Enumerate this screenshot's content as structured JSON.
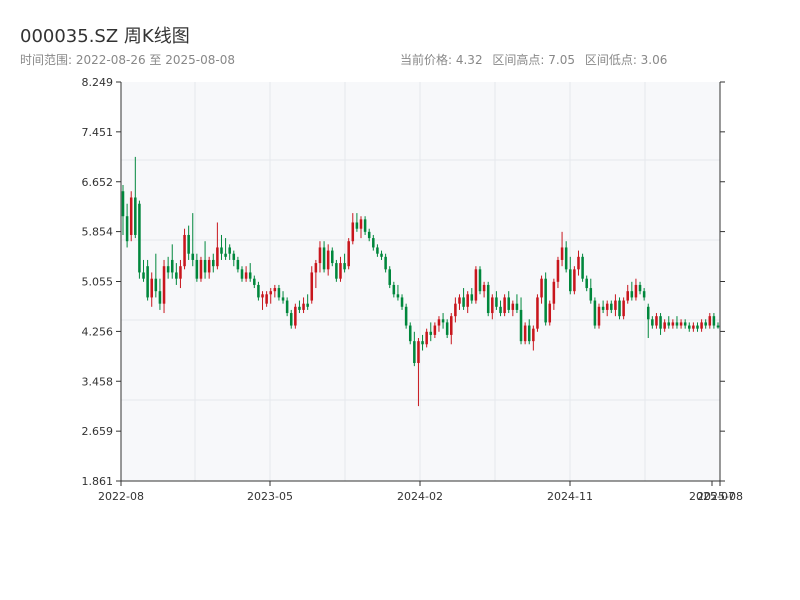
{
  "header": {
    "title": "000035.SZ 周K线图",
    "range_label": "时间范围: 2022-08-26 至 2025-08-08",
    "current_price": "当前价格: 4.32",
    "range_high": "区间高点: 7.05",
    "range_low": "区间低点: 3.06"
  },
  "colors": {
    "up": "#c8161d",
    "down": "#00873c",
    "plot_bg": "#f7f8fa",
    "grid": "#e6e8ec",
    "axis": "#333333"
  },
  "chart_data": {
    "type": "candlestick",
    "title": "000035.SZ 周K线图",
    "ylim": [
      1.861,
      8.249
    ],
    "y_ticks": [
      "1.861",
      "2.659",
      "3.458",
      "4.256",
      "5.055",
      "5.854",
      "6.652",
      "7.451",
      "8.249"
    ],
    "x_ticks": [
      "2022-08",
      "2023-05",
      "2024-02",
      "2024-11",
      "2025-07",
      "2025-08"
    ],
    "grid": true,
    "candles": [
      {
        "o": 6.5,
        "h": 6.6,
        "l": 5.8,
        "c": 6.1
      },
      {
        "o": 6.1,
        "h": 6.3,
        "l": 5.6,
        "c": 5.7
      },
      {
        "o": 5.8,
        "h": 6.5,
        "l": 5.7,
        "c": 6.4
      },
      {
        "o": 6.4,
        "h": 7.05,
        "l": 5.75,
        "c": 5.8
      },
      {
        "o": 6.3,
        "h": 6.35,
        "l": 5.1,
        "c": 5.2
      },
      {
        "o": 5.2,
        "h": 5.4,
        "l": 5.05,
        "c": 5.1
      },
      {
        "o": 5.3,
        "h": 5.4,
        "l": 4.75,
        "c": 4.8
      },
      {
        "o": 4.8,
        "h": 5.2,
        "l": 4.65,
        "c": 5.1
      },
      {
        "o": 5.1,
        "h": 5.5,
        "l": 4.8,
        "c": 4.9
      },
      {
        "o": 4.9,
        "h": 5.1,
        "l": 4.6,
        "c": 4.7
      },
      {
        "o": 4.7,
        "h": 5.4,
        "l": 4.55,
        "c": 5.3
      },
      {
        "o": 5.3,
        "h": 5.45,
        "l": 5.1,
        "c": 5.2
      },
      {
        "o": 5.4,
        "h": 5.65,
        "l": 5.1,
        "c": 5.2
      },
      {
        "o": 5.2,
        "h": 5.35,
        "l": 5.0,
        "c": 5.1
      },
      {
        "o": 5.1,
        "h": 5.4,
        "l": 4.95,
        "c": 5.3
      },
      {
        "o": 5.3,
        "h": 5.9,
        "l": 5.25,
        "c": 5.8
      },
      {
        "o": 5.8,
        "h": 5.95,
        "l": 5.4,
        "c": 5.5
      },
      {
        "o": 5.5,
        "h": 6.15,
        "l": 5.3,
        "c": 5.4
      },
      {
        "o": 5.4,
        "h": 5.5,
        "l": 5.05,
        "c": 5.1
      },
      {
        "o": 5.1,
        "h": 5.45,
        "l": 5.05,
        "c": 5.4
      },
      {
        "o": 5.4,
        "h": 5.7,
        "l": 5.1,
        "c": 5.2
      },
      {
        "o": 5.2,
        "h": 5.45,
        "l": 5.1,
        "c": 5.4
      },
      {
        "o": 5.4,
        "h": 5.5,
        "l": 5.2,
        "c": 5.3
      },
      {
        "o": 5.3,
        "h": 6.0,
        "l": 5.25,
        "c": 5.6
      },
      {
        "o": 5.6,
        "h": 5.8,
        "l": 5.4,
        "c": 5.5
      },
      {
        "o": 5.5,
        "h": 5.75,
        "l": 5.4,
        "c": 5.45
      },
      {
        "o": 5.6,
        "h": 5.65,
        "l": 5.4,
        "c": 5.5
      },
      {
        "o": 5.5,
        "h": 5.55,
        "l": 5.3,
        "c": 5.4
      },
      {
        "o": 5.4,
        "h": 5.45,
        "l": 5.2,
        "c": 5.25
      },
      {
        "o": 5.25,
        "h": 5.3,
        "l": 5.05,
        "c": 5.1
      },
      {
        "o": 5.1,
        "h": 5.3,
        "l": 5.05,
        "c": 5.2
      },
      {
        "o": 5.2,
        "h": 5.35,
        "l": 5.05,
        "c": 5.1
      },
      {
        "o": 5.1,
        "h": 5.15,
        "l": 4.95,
        "c": 5.0
      },
      {
        "o": 5.0,
        "h": 5.05,
        "l": 4.75,
        "c": 4.8
      },
      {
        "o": 4.8,
        "h": 4.9,
        "l": 4.6,
        "c": 4.85
      },
      {
        "o": 4.7,
        "h": 4.9,
        "l": 4.65,
        "c": 4.85
      },
      {
        "o": 4.85,
        "h": 4.95,
        "l": 4.7,
        "c": 4.9
      },
      {
        "o": 4.9,
        "h": 5.0,
        "l": 4.8,
        "c": 4.95
      },
      {
        "o": 4.95,
        "h": 5.0,
        "l": 4.75,
        "c": 4.8
      },
      {
        "o": 4.8,
        "h": 4.9,
        "l": 4.7,
        "c": 4.75
      },
      {
        "o": 4.75,
        "h": 4.8,
        "l": 4.5,
        "c": 4.55
      },
      {
        "o": 4.55,
        "h": 4.6,
        "l": 4.3,
        "c": 4.35
      },
      {
        "o": 4.35,
        "h": 4.7,
        "l": 4.3,
        "c": 4.65
      },
      {
        "o": 4.65,
        "h": 4.75,
        "l": 4.55,
        "c": 4.6
      },
      {
        "o": 4.6,
        "h": 4.8,
        "l": 4.55,
        "c": 4.7
      },
      {
        "o": 4.7,
        "h": 4.85,
        "l": 4.6,
        "c": 4.65
      },
      {
        "o": 4.75,
        "h": 5.3,
        "l": 4.7,
        "c": 5.2
      },
      {
        "o": 5.2,
        "h": 5.4,
        "l": 4.95,
        "c": 5.35
      },
      {
        "o": 5.35,
        "h": 5.7,
        "l": 5.2,
        "c": 5.6
      },
      {
        "o": 5.6,
        "h": 5.7,
        "l": 5.2,
        "c": 5.25
      },
      {
        "o": 5.25,
        "h": 5.65,
        "l": 5.15,
        "c": 5.55
      },
      {
        "o": 5.55,
        "h": 5.6,
        "l": 5.3,
        "c": 5.35
      },
      {
        "o": 5.35,
        "h": 5.4,
        "l": 5.05,
        "c": 5.1
      },
      {
        "o": 5.1,
        "h": 5.45,
        "l": 5.05,
        "c": 5.35
      },
      {
        "o": 5.35,
        "h": 5.5,
        "l": 5.2,
        "c": 5.25
      },
      {
        "o": 5.3,
        "h": 5.75,
        "l": 5.25,
        "c": 5.7
      },
      {
        "o": 5.7,
        "h": 6.15,
        "l": 5.65,
        "c": 6.0
      },
      {
        "o": 6.0,
        "h": 6.15,
        "l": 5.85,
        "c": 5.9
      },
      {
        "o": 5.9,
        "h": 6.1,
        "l": 5.75,
        "c": 6.05
      },
      {
        "o": 6.05,
        "h": 6.1,
        "l": 5.8,
        "c": 5.85
      },
      {
        "o": 5.85,
        "h": 5.9,
        "l": 5.7,
        "c": 5.75
      },
      {
        "o": 5.75,
        "h": 5.8,
        "l": 5.55,
        "c": 5.6
      },
      {
        "o": 5.6,
        "h": 5.65,
        "l": 5.45,
        "c": 5.5
      },
      {
        "o": 5.5,
        "h": 5.55,
        "l": 5.4,
        "c": 5.45
      },
      {
        "o": 5.45,
        "h": 5.5,
        "l": 5.2,
        "c": 5.25
      },
      {
        "o": 5.25,
        "h": 5.3,
        "l": 4.95,
        "c": 5.0
      },
      {
        "o": 5.0,
        "h": 5.05,
        "l": 4.8,
        "c": 4.85
      },
      {
        "o": 4.85,
        "h": 5.0,
        "l": 4.75,
        "c": 4.8
      },
      {
        "o": 4.8,
        "h": 4.85,
        "l": 4.6,
        "c": 4.65
      },
      {
        "o": 4.65,
        "h": 4.7,
        "l": 4.3,
        "c": 4.35
      },
      {
        "o": 4.35,
        "h": 4.4,
        "l": 4.05,
        "c": 4.1
      },
      {
        "o": 4.1,
        "h": 4.25,
        "l": 3.7,
        "c": 3.75
      },
      {
        "o": 3.75,
        "h": 4.15,
        "l": 3.06,
        "c": 4.1
      },
      {
        "o": 4.1,
        "h": 4.2,
        "l": 3.95,
        "c": 4.05
      },
      {
        "o": 4.05,
        "h": 4.3,
        "l": 4.0,
        "c": 4.25
      },
      {
        "o": 4.25,
        "h": 4.4,
        "l": 4.1,
        "c": 4.2
      },
      {
        "o": 4.2,
        "h": 4.4,
        "l": 4.15,
        "c": 4.35
      },
      {
        "o": 4.35,
        "h": 4.5,
        "l": 4.25,
        "c": 4.45
      },
      {
        "o": 4.45,
        "h": 4.55,
        "l": 4.3,
        "c": 4.4
      },
      {
        "o": 4.4,
        "h": 4.45,
        "l": 4.15,
        "c": 4.2
      },
      {
        "o": 4.2,
        "h": 4.55,
        "l": 4.05,
        "c": 4.5
      },
      {
        "o": 4.5,
        "h": 4.8,
        "l": 4.4,
        "c": 4.7
      },
      {
        "o": 4.7,
        "h": 4.85,
        "l": 4.6,
        "c": 4.8
      },
      {
        "o": 4.8,
        "h": 4.95,
        "l": 4.6,
        "c": 4.65
      },
      {
        "o": 4.65,
        "h": 4.9,
        "l": 4.55,
        "c": 4.85
      },
      {
        "o": 4.85,
        "h": 4.95,
        "l": 4.7,
        "c": 4.75
      },
      {
        "o": 4.75,
        "h": 5.3,
        "l": 4.7,
        "c": 5.25
      },
      {
        "o": 5.25,
        "h": 5.3,
        "l": 4.85,
        "c": 4.9
      },
      {
        "o": 4.9,
        "h": 5.05,
        "l": 4.8,
        "c": 5.0
      },
      {
        "o": 5.0,
        "h": 5.05,
        "l": 4.5,
        "c": 4.55
      },
      {
        "o": 4.55,
        "h": 4.85,
        "l": 4.45,
        "c": 4.8
      },
      {
        "o": 4.8,
        "h": 4.9,
        "l": 4.6,
        "c": 4.65
      },
      {
        "o": 4.65,
        "h": 4.75,
        "l": 4.5,
        "c": 4.55
      },
      {
        "o": 4.55,
        "h": 4.85,
        "l": 4.5,
        "c": 4.8
      },
      {
        "o": 4.8,
        "h": 4.9,
        "l": 4.55,
        "c": 4.6
      },
      {
        "o": 4.6,
        "h": 4.75,
        "l": 4.5,
        "c": 4.7
      },
      {
        "o": 4.7,
        "h": 4.85,
        "l": 4.55,
        "c": 4.6
      },
      {
        "o": 4.6,
        "h": 4.8,
        "l": 4.05,
        "c": 4.1
      },
      {
        "o": 4.1,
        "h": 4.4,
        "l": 4.05,
        "c": 4.35
      },
      {
        "o": 4.35,
        "h": 4.45,
        "l": 4.05,
        "c": 4.1
      },
      {
        "o": 4.1,
        "h": 4.35,
        "l": 3.95,
        "c": 4.3
      },
      {
        "o": 4.3,
        "h": 4.85,
        "l": 4.25,
        "c": 4.8
      },
      {
        "o": 4.8,
        "h": 5.15,
        "l": 4.7,
        "c": 5.1
      },
      {
        "o": 5.1,
        "h": 5.2,
        "l": 4.35,
        "c": 4.4
      },
      {
        "o": 4.4,
        "h": 4.75,
        "l": 4.35,
        "c": 4.7
      },
      {
        "o": 4.7,
        "h": 5.1,
        "l": 4.6,
        "c": 5.05
      },
      {
        "o": 5.05,
        "h": 5.45,
        "l": 4.95,
        "c": 5.4
      },
      {
        "o": 5.4,
        "h": 5.85,
        "l": 5.3,
        "c": 5.6
      },
      {
        "o": 5.6,
        "h": 5.7,
        "l": 5.2,
        "c": 5.25
      },
      {
        "o": 5.25,
        "h": 5.45,
        "l": 4.85,
        "c": 4.9
      },
      {
        "o": 4.9,
        "h": 5.3,
        "l": 4.85,
        "c": 5.25
      },
      {
        "o": 5.25,
        "h": 5.55,
        "l": 5.15,
        "c": 5.45
      },
      {
        "o": 5.45,
        "h": 5.5,
        "l": 5.05,
        "c": 5.1
      },
      {
        "o": 5.1,
        "h": 5.15,
        "l": 4.9,
        "c": 4.95
      },
      {
        "o": 4.95,
        "h": 5.1,
        "l": 4.7,
        "c": 4.75
      },
      {
        "o": 4.75,
        "h": 4.8,
        "l": 4.3,
        "c": 4.35
      },
      {
        "o": 4.35,
        "h": 4.7,
        "l": 4.3,
        "c": 4.65
      },
      {
        "o": 4.65,
        "h": 4.75,
        "l": 4.55,
        "c": 4.6
      },
      {
        "o": 4.6,
        "h": 4.75,
        "l": 4.5,
        "c": 4.7
      },
      {
        "o": 4.7,
        "h": 4.75,
        "l": 4.55,
        "c": 4.6
      },
      {
        "o": 4.6,
        "h": 4.85,
        "l": 4.5,
        "c": 4.75
      },
      {
        "o": 4.75,
        "h": 4.8,
        "l": 4.45,
        "c": 4.5
      },
      {
        "o": 4.5,
        "h": 4.8,
        "l": 4.45,
        "c": 4.75
      },
      {
        "o": 4.75,
        "h": 5.0,
        "l": 4.7,
        "c": 4.9
      },
      {
        "o": 4.9,
        "h": 5.05,
        "l": 4.75,
        "c": 4.8
      },
      {
        "o": 4.8,
        "h": 5.1,
        "l": 4.75,
        "c": 5.0
      },
      {
        "o": 5.0,
        "h": 5.05,
        "l": 4.85,
        "c": 4.9
      },
      {
        "o": 4.9,
        "h": 4.95,
        "l": 4.75,
        "c": 4.8
      },
      {
        "o": 4.65,
        "h": 4.7,
        "l": 4.15,
        "c": 4.45
      },
      {
        "o": 4.45,
        "h": 4.5,
        "l": 4.3,
        "c": 4.35
      },
      {
        "o": 4.35,
        "h": 4.55,
        "l": 4.3,
        "c": 4.5
      },
      {
        "o": 4.5,
        "h": 4.55,
        "l": 4.2,
        "c": 4.3
      },
      {
        "o": 4.3,
        "h": 4.45,
        "l": 4.25,
        "c": 4.4
      },
      {
        "o": 4.4,
        "h": 4.5,
        "l": 4.3,
        "c": 4.35
      },
      {
        "o": 4.35,
        "h": 4.45,
        "l": 4.3,
        "c": 4.4
      },
      {
        "o": 4.4,
        "h": 4.5,
        "l": 4.3,
        "c": 4.35
      },
      {
        "o": 4.35,
        "h": 4.45,
        "l": 4.3,
        "c": 4.4
      },
      {
        "o": 4.4,
        "h": 4.45,
        "l": 4.3,
        "c": 4.35
      },
      {
        "o": 4.35,
        "h": 4.4,
        "l": 4.25,
        "c": 4.3
      },
      {
        "o": 4.3,
        "h": 4.4,
        "l": 4.25,
        "c": 4.35
      },
      {
        "o": 4.35,
        "h": 4.4,
        "l": 4.25,
        "c": 4.3
      },
      {
        "o": 4.3,
        "h": 4.45,
        "l": 4.25,
        "c": 4.4
      },
      {
        "o": 4.4,
        "h": 4.45,
        "l": 4.3,
        "c": 4.35
      },
      {
        "o": 4.35,
        "h": 4.55,
        "l": 4.3,
        "c": 4.5
      },
      {
        "o": 4.5,
        "h": 4.55,
        "l": 4.3,
        "c": 4.35
      },
      {
        "o": 4.35,
        "h": 4.4,
        "l": 4.3,
        "c": 4.32
      }
    ]
  }
}
